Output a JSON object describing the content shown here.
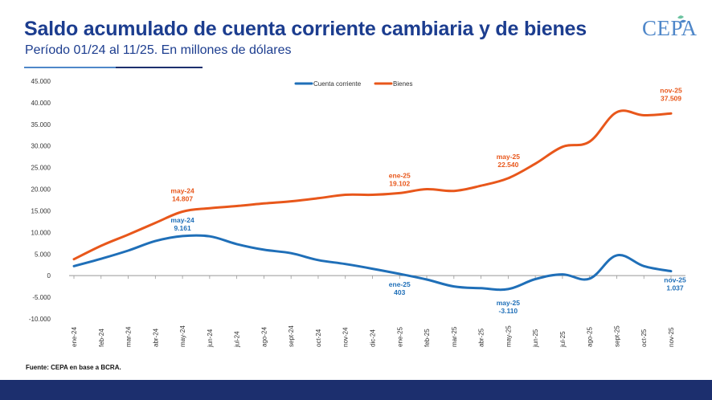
{
  "header": {
    "title": "Saldo acumulado de cuenta corriente cambiaria y de bienes",
    "subtitle": "Período 01/24 al 11/25. En millones de dólares",
    "logo_text": "CEPA"
  },
  "source_note": "Fuente: CEPA en base a BCRA.",
  "colors": {
    "title": "#1c3d8f",
    "cuenta_corriente": "#1f6fb8",
    "bienes": "#e8571b",
    "footer": "#1c2f6e"
  },
  "chart_data": {
    "type": "line",
    "title": "Saldo acumulado de cuenta corriente cambiaria y de bienes",
    "subtitle": "Período 01/24 al 11/25. En millones de dólares",
    "categories": [
      "ene-24",
      "feb-24",
      "mar-24",
      "abr-24",
      "may-24",
      "jun-24",
      "jul-24",
      "ago-24",
      "sept-24",
      "oct-24",
      "nov-24",
      "dic-24",
      "ene-25",
      "feb-25",
      "mar-25",
      "abr-25",
      "may-25",
      "jun-25",
      "jul-25",
      "ago-25",
      "sept-25",
      "oct-25",
      "nov-25"
    ],
    "ylim": [
      -10000,
      45000
    ],
    "yticks": [
      -10000,
      -5000,
      0,
      5000,
      10000,
      15000,
      20000,
      25000,
      30000,
      35000,
      40000,
      45000
    ],
    "ytick_labels": [
      "-10.000",
      "-5.000",
      "0",
      "5.000",
      "10.000",
      "15.000",
      "20.000",
      "25.000",
      "30.000",
      "35.000",
      "40.000",
      "45.000"
    ],
    "grid": false,
    "legend_position": "top-center",
    "series": [
      {
        "name": "Cuenta corriente",
        "color": "#1f6fb8",
        "values": [
          2200,
          3900,
          5800,
          8000,
          9161,
          9100,
          7300,
          6000,
          5200,
          3600,
          2700,
          1600,
          403,
          -900,
          -2500,
          -2900,
          -3110,
          -800,
          300,
          -700,
          4700,
          2200,
          1037
        ]
      },
      {
        "name": "Bienes",
        "color": "#e8571b",
        "values": [
          3800,
          6900,
          9500,
          12200,
          14807,
          15600,
          16100,
          16700,
          17200,
          17900,
          18700,
          18700,
          19102,
          20000,
          19600,
          20800,
          22540,
          25900,
          29800,
          31000,
          37800,
          37100,
          37509
        ]
      }
    ],
    "annotations": [
      {
        "series": "Bienes",
        "index": 4,
        "label": "may-24",
        "value": "14.807"
      },
      {
        "series": "Bienes",
        "index": 12,
        "label": "ene-25",
        "value": "19.102"
      },
      {
        "series": "Bienes",
        "index": 16,
        "label": "may-25",
        "value": "22.540"
      },
      {
        "series": "Bienes",
        "index": 22,
        "label": "nov-25",
        "value": "37.509"
      },
      {
        "series": "Cuenta corriente",
        "index": 4,
        "label": "may-24",
        "value": "9.161"
      },
      {
        "series": "Cuenta corriente",
        "index": 12,
        "label": "ene-25",
        "value": "403"
      },
      {
        "series": "Cuenta corriente",
        "index": 16,
        "label": "may-25",
        "value": "-3.110"
      },
      {
        "series": "Cuenta corriente",
        "index": 22,
        "label": "nov-25",
        "value": "1.037"
      }
    ]
  }
}
